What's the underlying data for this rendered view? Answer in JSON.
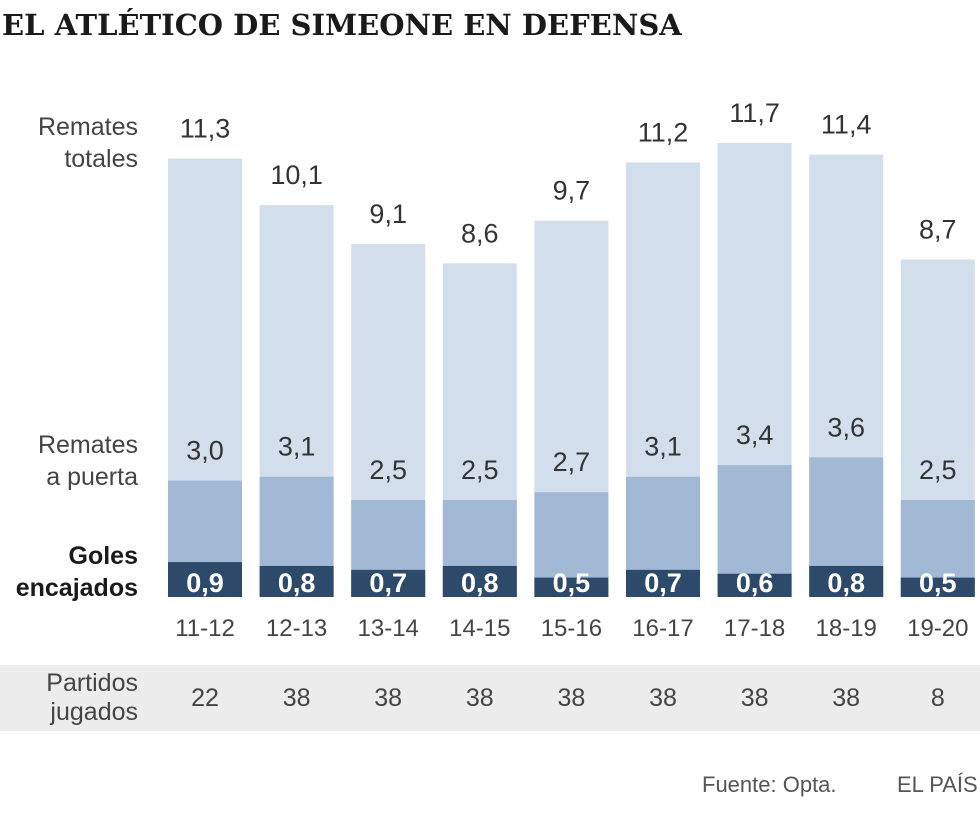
{
  "title": "EL ATLÉTICO DE SIMEONE EN DEFENSA",
  "row_labels": {
    "total_shots": [
      "Remates",
      "totales"
    ],
    "shots_on_target": [
      "Remates",
      "a puerta"
    ],
    "goals_conceded": [
      "Goles",
      "encajados"
    ],
    "games_played": [
      "Partidos",
      "jugados"
    ]
  },
  "chart_data": {
    "type": "bar",
    "title": "EL ATLÉTICO DE SIMEONE EN DEFENSA",
    "xlabel": "",
    "ylabel": "",
    "ylim": [
      0,
      12
    ],
    "layout": "overlapping",
    "categories": [
      "11-12",
      "12-13",
      "13-14",
      "14-15",
      "15-16",
      "16-17",
      "17-18",
      "18-19",
      "19-20"
    ],
    "series": [
      {
        "name": "Remates totales",
        "color": "#d3deed",
        "values": [
          11.3,
          10.1,
          9.1,
          8.6,
          9.7,
          11.2,
          11.7,
          11.4,
          8.7
        ],
        "labels": [
          "11,3",
          "10,1",
          "9,1",
          "8,6",
          "9,7",
          "11,2",
          "11,7",
          "11,4",
          "8,7"
        ]
      },
      {
        "name": "Remates a puerta",
        "color": "#a2b9d6",
        "values": [
          3.0,
          3.1,
          2.5,
          2.5,
          2.7,
          3.1,
          3.4,
          3.6,
          2.5
        ],
        "labels": [
          "3,0",
          "3,1",
          "2,5",
          "2,5",
          "2,7",
          "3,1",
          "3,4",
          "3,6",
          "2,5"
        ]
      },
      {
        "name": "Goles encajados",
        "color": "#2d4a6b",
        "values": [
          0.9,
          0.8,
          0.7,
          0.8,
          0.5,
          0.7,
          0.6,
          0.8,
          0.5
        ],
        "labels": [
          "0,9",
          "0,8",
          "0,7",
          "0,8",
          "0,5",
          "0,7",
          "0,6",
          "0,8",
          "0,5"
        ]
      }
    ],
    "games_played": [
      "22",
      "38",
      "38",
      "38",
      "38",
      "38",
      "38",
      "38",
      "8"
    ]
  },
  "footer": {
    "source": "Fuente: Opta.",
    "publisher": "EL PAÍS"
  }
}
